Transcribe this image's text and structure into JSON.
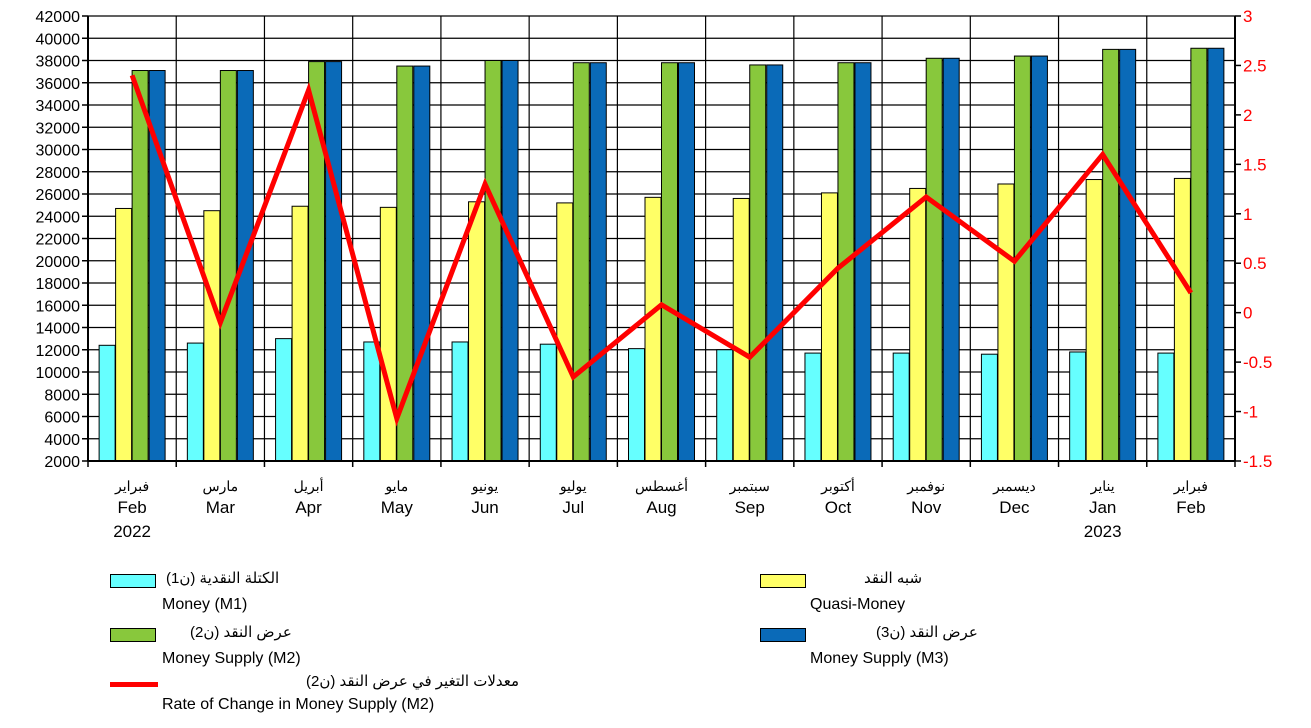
{
  "chart_data": {
    "type": "bar",
    "categories_ar": [
      "فبراير",
      "مارس",
      "أبريل",
      "مايو",
      "يونيو",
      "يوليو",
      "أغسطس",
      "سبتمبر",
      "أكتوبر",
      "نوفمبر",
      "ديسمبر",
      "يناير",
      "فبراير"
    ],
    "categories_en": [
      "Feb",
      "Mar",
      "Apr",
      "May",
      "Jun",
      "Jul",
      "Aug",
      "Sep",
      "Oct",
      "Nov",
      "Dec",
      "Jan",
      "Feb"
    ],
    "years": [
      "2022",
      "",
      "",
      "",
      "",
      "",
      "",
      "",
      "",
      "",
      "",
      "2023",
      ""
    ],
    "ylim": [
      2000,
      42000
    ],
    "y_ticks": [
      2000,
      4000,
      6000,
      8000,
      10000,
      12000,
      14000,
      16000,
      18000,
      20000,
      22000,
      24000,
      26000,
      28000,
      30000,
      32000,
      34000,
      36000,
      38000,
      40000,
      42000
    ],
    "y2lim": [
      -1.5,
      3
    ],
    "y2_ticks": [
      "-1.5",
      "-1",
      "-0.5",
      "0",
      "0.5",
      "1",
      "1.5",
      "2",
      "2.5",
      "3"
    ],
    "grid": true,
    "series": [
      {
        "name": "Money (M1)",
        "name_ar": "الكتلة النقدية (ن1)",
        "color": "#66ffff",
        "values": [
          12400,
          12600,
          13000,
          12700,
          12700,
          12500,
          12100,
          12000,
          11700,
          11700,
          11600,
          11800,
          11700
        ]
      },
      {
        "name": "Quasi-Money",
        "name_ar": "شبه النقد",
        "color": "#ffff66",
        "values": [
          24700,
          24500,
          24900,
          24800,
          25300,
          25200,
          25700,
          25600,
          26100,
          26500,
          26900,
          27300,
          27400
        ]
      },
      {
        "name": "Money Supply (M2)",
        "name_ar": "عرض النقد (ن2)",
        "color": "#88c83c",
        "values": [
          37100,
          37100,
          37900,
          37500,
          38000,
          37800,
          37800,
          37600,
          37800,
          38200,
          38400,
          39000,
          39100
        ]
      },
      {
        "name": "Money Supply (M3)",
        "name_ar": "عرض النقد (ن3)",
        "color": "#0a6ab8",
        "values": [
          37100,
          37100,
          37900,
          37500,
          38000,
          37800,
          37800,
          37600,
          37800,
          38200,
          38400,
          39000,
          39100
        ]
      }
    ],
    "line_series": {
      "name": "Rate of Change in Money Supply (M2)",
      "name_ar": "معدلات التغير في عرض النقد (ن2)",
      "color": "#ff0000",
      "axis": "right",
      "values": [
        2.4,
        -0.1,
        2.25,
        -1.07,
        1.3,
        -0.65,
        0.08,
        -0.45,
        0.45,
        1.17,
        0.52,
        1.6,
        0.2
      ]
    }
  },
  "colors": {
    "axis_right": "#ff0000",
    "axis_left": "#000000"
  }
}
